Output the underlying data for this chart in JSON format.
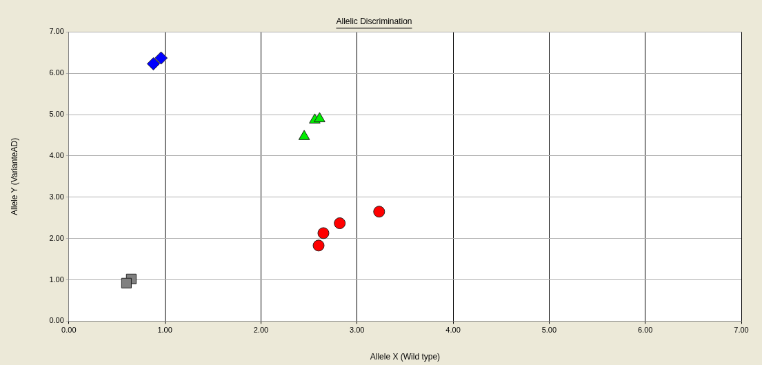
{
  "chart_data": {
    "type": "scatter",
    "title": "Allelic Discrimination",
    "xlabel": "Allele X (Wild type)",
    "ylabel": "Allele Y (VarianteAD)",
    "xlim": [
      0,
      7
    ],
    "xticks": [
      {
        "value": 0,
        "label": "0.00"
      },
      {
        "value": 1,
        "label": "1.00"
      },
      {
        "value": 2,
        "label": "2.00"
      },
      {
        "value": 3,
        "label": "3.00"
      },
      {
        "value": 4,
        "label": "4.00"
      },
      {
        "value": 5,
        "label": "5.00"
      },
      {
        "value": 6,
        "label": "6.00"
      },
      {
        "value": 7,
        "label": "7.00"
      }
    ],
    "ylim": [
      0,
      7
    ],
    "yticks": [
      {
        "value": 0,
        "label": "0.00"
      },
      {
        "value": 1,
        "label": "1.00"
      },
      {
        "value": 2,
        "label": "2.00"
      },
      {
        "value": 3,
        "label": "3.00"
      },
      {
        "value": 4,
        "label": "4.00"
      },
      {
        "value": 5,
        "label": "5.00"
      },
      {
        "value": 6,
        "label": "6.00"
      },
      {
        "value": 7,
        "label": "7.00"
      }
    ],
    "grid": true,
    "legend": false,
    "series": [
      {
        "color": "#0000ff",
        "marker": "diamond",
        "x": [
          0.88,
          0.96
        ],
        "values": [
          6.23,
          6.37
        ]
      },
      {
        "color": "#00ee00",
        "marker": "triangle",
        "x": [
          2.56,
          2.61,
          2.45
        ],
        "values": [
          4.87,
          4.9,
          4.47
        ]
      },
      {
        "color": "#ff0000",
        "marker": "circle",
        "x": [
          3.23,
          2.82,
          2.65,
          2.6
        ],
        "values": [
          2.65,
          2.37,
          2.13,
          1.83
        ]
      },
      {
        "color": "#808080",
        "marker": "square",
        "x": [
          0.65,
          0.6
        ],
        "values": [
          1.02,
          0.92
        ]
      }
    ]
  }
}
